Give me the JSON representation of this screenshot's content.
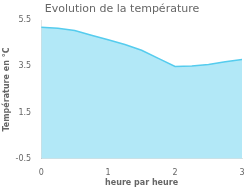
{
  "chart_data": {
    "type": "line",
    "title": "Evolution de la température",
    "xlabel": "heure par heure",
    "ylabel": "Température en °C",
    "x": [
      0,
      0.25,
      0.5,
      0.75,
      1.0,
      1.25,
      1.5,
      1.75,
      2.0,
      2.25,
      2.5,
      2.75,
      3.0
    ],
    "values": [
      5.2,
      5.15,
      5.05,
      4.85,
      4.65,
      4.45,
      4.2,
      3.85,
      3.5,
      3.52,
      3.58,
      3.7,
      3.8
    ],
    "color": "#55ccee",
    "xlim": [
      0,
      3
    ],
    "ylim": [
      -0.5,
      5.5
    ],
    "xticks": [
      0,
      1,
      2,
      3
    ],
    "yticks": [
      -0.5,
      1.5,
      3.5,
      5.5
    ],
    "grid": false
  }
}
